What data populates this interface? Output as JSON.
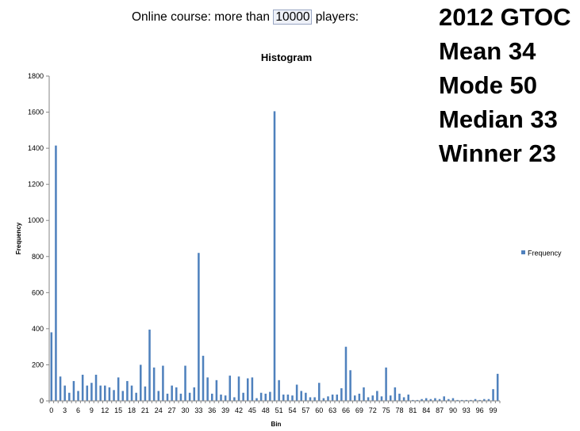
{
  "headline": {
    "prefix": "Online course:  more than ",
    "highlight": "10000",
    "suffix": " players:"
  },
  "stats": [
    "2012 GTOC",
    "Mean  34",
    "Mode 50",
    "Median  33",
    "Winner  23"
  ],
  "chart_data": {
    "type": "bar",
    "title": "Histogram",
    "xlabel": "Bin",
    "ylabel": "Frequency",
    "ylim": [
      0,
      1800
    ],
    "yticks": [
      0,
      200,
      400,
      600,
      800,
      1000,
      1200,
      1400,
      1600,
      1800
    ],
    "xtick_labels": [
      "0",
      "3",
      "6",
      "9",
      "12",
      "15",
      "18",
      "21",
      "24",
      "27",
      "30",
      "33",
      "36",
      "39",
      "42",
      "45",
      "48",
      "51",
      "54",
      "57",
      "60",
      "63",
      "66",
      "69",
      "72",
      "75",
      "78",
      "81",
      "84",
      "87",
      "90",
      "93",
      "96",
      "99"
    ],
    "bar_color": "#4f81bd",
    "grid": false,
    "legend_position": "right",
    "series": [
      {
        "name": "Frequency",
        "bins": [
          0,
          1,
          2,
          3,
          4,
          5,
          6,
          7,
          8,
          9,
          10,
          11,
          12,
          13,
          14,
          15,
          16,
          17,
          18,
          19,
          20,
          21,
          22,
          23,
          24,
          25,
          26,
          27,
          28,
          29,
          30,
          31,
          32,
          33,
          34,
          35,
          36,
          37,
          38,
          39,
          40,
          41,
          42,
          43,
          44,
          45,
          46,
          47,
          48,
          49,
          50,
          51,
          52,
          53,
          54,
          55,
          56,
          57,
          58,
          59,
          60,
          61,
          62,
          63,
          64,
          65,
          66,
          67,
          68,
          69,
          70,
          71,
          72,
          73,
          74,
          75,
          76,
          77,
          78,
          79,
          80,
          81,
          82,
          83,
          84,
          85,
          86,
          87,
          88,
          89,
          90,
          91,
          92,
          93,
          94,
          95,
          96,
          97,
          98,
          99,
          100
        ],
        "values": [
          380,
          1415,
          135,
          85,
          45,
          110,
          55,
          145,
          85,
          100,
          145,
          85,
          85,
          75,
          60,
          130,
          55,
          110,
          85,
          45,
          200,
          80,
          395,
          185,
          55,
          195,
          40,
          85,
          75,
          40,
          195,
          45,
          75,
          820,
          250,
          130,
          40,
          115,
          35,
          30,
          140,
          20,
          135,
          45,
          125,
          130,
          15,
          45,
          40,
          50,
          1605,
          115,
          35,
          35,
          30,
          90,
          55,
          45,
          20,
          20,
          100,
          15,
          25,
          35,
          35,
          70,
          300,
          170,
          30,
          40,
          75,
          20,
          30,
          55,
          25,
          185,
          30,
          75,
          40,
          20,
          35,
          5,
          5,
          10,
          15,
          10,
          15,
          10,
          25,
          10,
          15,
          5,
          5,
          5,
          5,
          10,
          5,
          10,
          10,
          65,
          150
        ]
      }
    ]
  }
}
